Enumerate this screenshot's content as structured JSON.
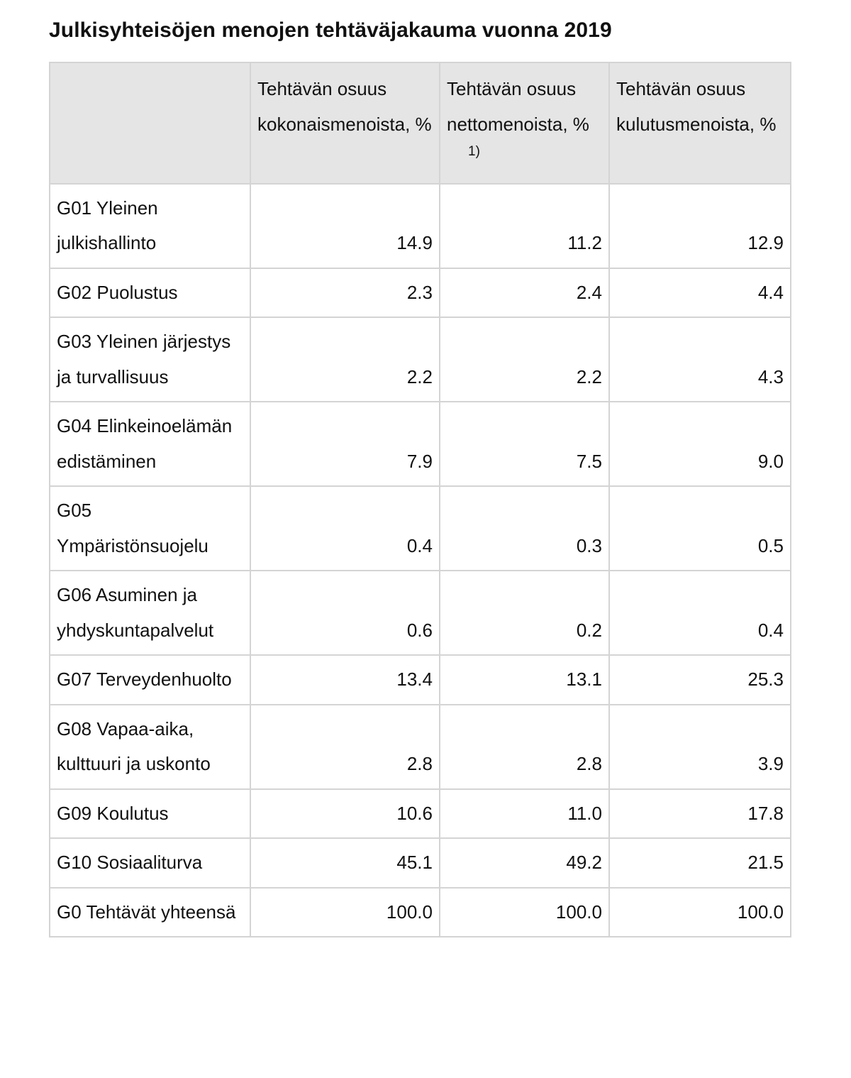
{
  "title": "Julkisyhteisöjen menojen tehtäväjakauma vuonna 2019",
  "table": {
    "headers": [
      "",
      "Tehtävän osuus kokonaismenoista, %",
      "Tehtävän osuus nettomenoista, %",
      "Tehtävän osuus kulutusmenoista, %"
    ],
    "header_footnote": "1)",
    "rows": [
      {
        "label": "G01 Yleinen julkishallinto",
        "values": [
          "14.9",
          "11.2",
          "12.9"
        ]
      },
      {
        "label": "G02 Puolustus",
        "values": [
          "2.3",
          "2.4",
          "4.4"
        ]
      },
      {
        "label": "G03 Yleinen järjestys ja turvallisuus",
        "values": [
          "2.2",
          "2.2",
          "4.3"
        ]
      },
      {
        "label": "G04 Elinkeinoelämän edistäminen",
        "values": [
          "7.9",
          "7.5",
          "9.0"
        ]
      },
      {
        "label": "G05 Ympäristönsuojelu",
        "values": [
          "0.4",
          "0.3",
          "0.5"
        ]
      },
      {
        "label": "G06 Asuminen ja yhdyskuntapalvelut",
        "values": [
          "0.6",
          "0.2",
          "0.4"
        ]
      },
      {
        "label": "G07 Terveydenhuolto",
        "values": [
          "13.4",
          "13.1",
          "25.3"
        ]
      },
      {
        "label": "G08 Vapaa-aika, kulttuuri ja uskonto",
        "values": [
          "2.8",
          "2.8",
          "3.9"
        ]
      },
      {
        "label": "G09 Koulutus",
        "values": [
          "10.6",
          "11.0",
          "17.8"
        ]
      },
      {
        "label": "G10 Sosiaaliturva",
        "values": [
          "45.1",
          "49.2",
          "21.5"
        ]
      },
      {
        "label": "G0 Tehtävät yhteensä",
        "values": [
          "100.0",
          "100.0",
          "100.0"
        ]
      }
    ]
  }
}
